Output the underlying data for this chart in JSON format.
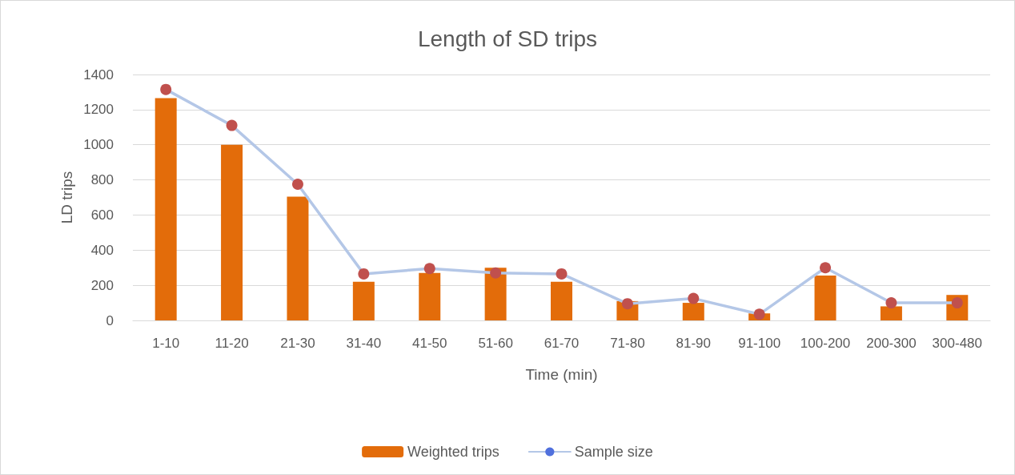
{
  "chart_data": {
    "type": "bar",
    "title": "Length of SD trips",
    "xlabel": "Time (min)",
    "ylabel": "LD trips",
    "categories": [
      "1-10",
      "11-20",
      "21-30",
      "31-40",
      "41-50",
      "51-60",
      "61-70",
      "71-80",
      "81-90",
      "91-100",
      "100-200",
      "200-300",
      "300-480"
    ],
    "series": [
      {
        "name": "Weighted trips",
        "color": "#e36c0a",
        "values": [
          1265,
          1000,
          705,
          220,
          270,
          300,
          220,
          110,
          100,
          40,
          255,
          80,
          145
        ]
      },
      {
        "name": "Sample size",
        "type": "line",
        "color": "#b4c7e7",
        "marker": "circle",
        "colors": [
          "#c0504d",
          "#c0504d",
          "#c0504d",
          "#c0504d",
          "#c0504d",
          "#c0504d",
          "#c0504d",
          "#c0504d",
          "#c0504d",
          "#c0504d",
          "#c0504d",
          "#c0504d",
          "#c0504d"
        ],
        "values": [
          1315,
          1110,
          775,
          265,
          295,
          270,
          265,
          95,
          125,
          35,
          300,
          100,
          100
        ]
      }
    ],
    "ylim": [
      0,
      1400
    ],
    "yticks": [
      0,
      200,
      400,
      600,
      800,
      1000,
      1200,
      1400
    ],
    "grid": "y",
    "legend": "bottom"
  }
}
